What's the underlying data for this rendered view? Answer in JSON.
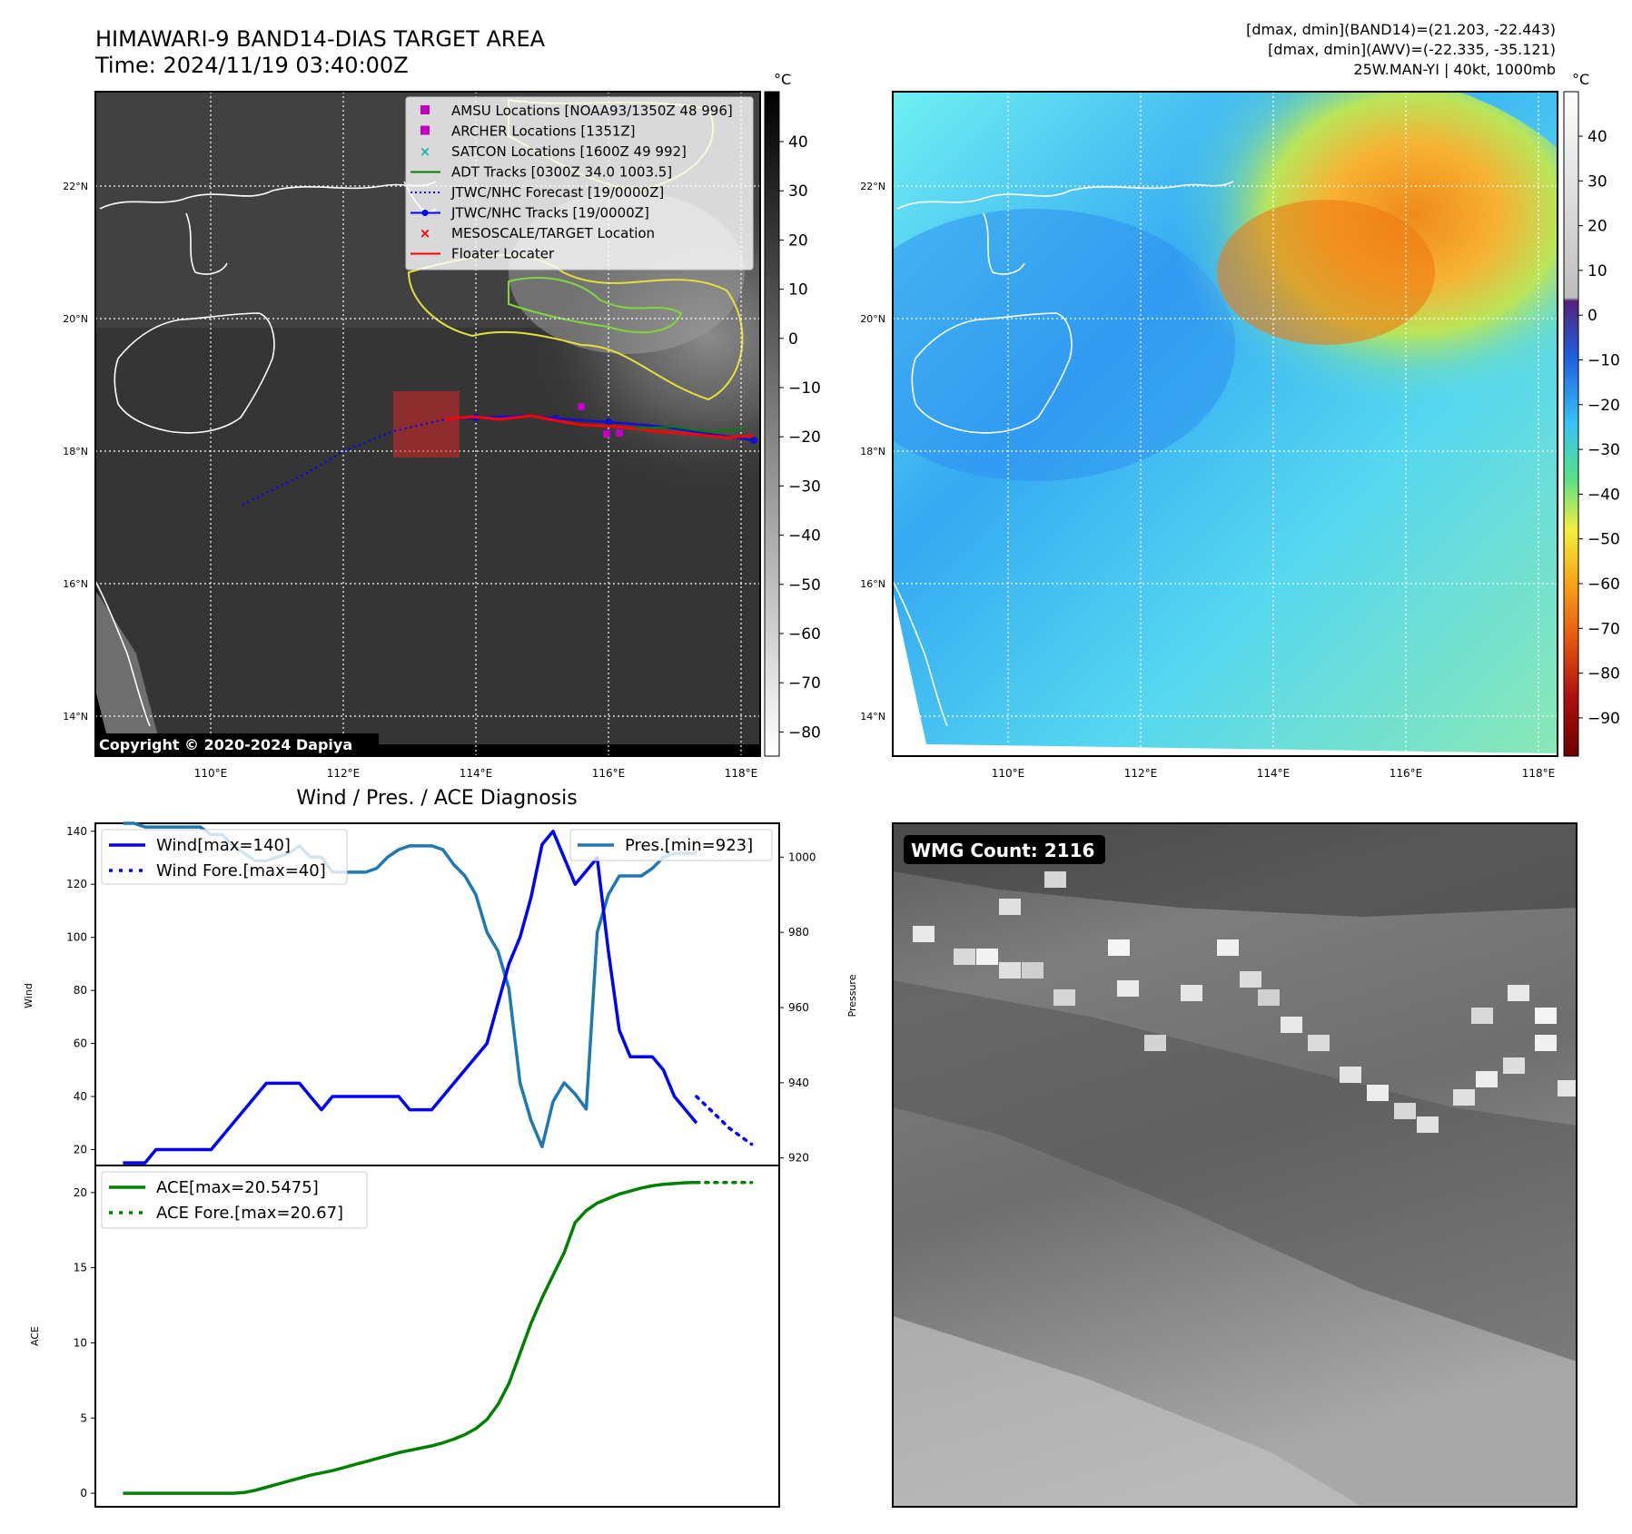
{
  "header": {
    "title_line1": "HIMAWARI-9 BAND14-DIAS TARGET AREA",
    "title_line2": "Time: 2024/11/19 03:40:00Z",
    "info_line1": "[dmax, dmin](BAND14)=(21.203, -22.443)",
    "info_line2": "[dmax, dmin](AWV)=(-22.335, -35.121)",
    "info_line3": "25W.MAN-YI | 40kt, 1000mb"
  },
  "maps": {
    "lat_labels": [
      "22°N",
      "20°N",
      "18°N",
      "16°N",
      "14°N"
    ],
    "lon_labels": [
      "110°E",
      "112°E",
      "114°E",
      "116°E",
      "118°E"
    ],
    "copyright": "Copyright © 2020-2024 Dapiya",
    "colorbar_unit": "°C",
    "gray_colorbar_ticks": [
      "40",
      "30",
      "20",
      "10",
      "0",
      "−10",
      "−20",
      "−30",
      "−40",
      "−50",
      "−60",
      "−70",
      "−80"
    ],
    "color_colorbar_ticks": [
      "40",
      "30",
      "20",
      "10",
      "0",
      "−10",
      "−20",
      "−30",
      "−40",
      "−50",
      "−60",
      "−70",
      "−80",
      "−90"
    ],
    "legend": [
      {
        "label": "AMSU Locations [NOAA93/1350Z 48 996]",
        "symbol": "square",
        "color": "#c000c0"
      },
      {
        "label": "ARCHER Locations [1351Z]",
        "symbol": "square",
        "color": "#c000c0"
      },
      {
        "label": "SATCON Locations [1600Z 49 992]",
        "symbol": "x",
        "color": "#20b2aa"
      },
      {
        "label": "ADT Tracks [0300Z 34.0 1003.5]",
        "symbol": "line",
        "color": "#008000"
      },
      {
        "label": "JTWC/NHC Forecast [19/0000Z]",
        "symbol": "dotted",
        "color": "#0000ff"
      },
      {
        "label": "JTWC/NHC Tracks [19/0000Z]",
        "symbol": "line-dot",
        "color": "#0000ff"
      },
      {
        "label": "MESOSCALE/TARGET Location",
        "symbol": "x",
        "color": "#ff0000"
      },
      {
        "label": "Floater Locater",
        "symbol": "line",
        "color": "#ff0000"
      }
    ]
  },
  "wmg": {
    "label": "WMG Count: 2116"
  },
  "colors": {
    "wind": "#0000ff",
    "pressure": "#1f77b4",
    "ace": "#008000",
    "target_box": "#d62728"
  },
  "chart_data": [
    {
      "type": "line",
      "title": "Wind / Pres. / ACE Diagnosis",
      "ylabel": "Wind",
      "ylim": [
        14,
        143
      ],
      "yticks": [
        20,
        40,
        60,
        80,
        100,
        120,
        140
      ],
      "series": [
        {
          "name": "Wind[max=140]",
          "x": [
            0,
            1,
            2,
            3,
            4,
            5,
            6,
            7,
            8,
            9,
            10,
            11,
            12,
            13,
            14,
            15,
            16,
            17,
            18,
            19,
            20,
            21,
            22,
            23,
            24,
            25,
            26,
            27,
            28,
            29,
            30,
            31,
            32,
            33,
            34,
            35,
            36,
            37,
            38,
            39,
            40,
            41,
            42,
            43,
            44,
            45,
            46,
            47,
            48,
            49,
            50,
            51,
            52
          ],
          "values": [
            15,
            15,
            15,
            20,
            20,
            20,
            20,
            20,
            20,
            25,
            30,
            35,
            40,
            45,
            45,
            45,
            45,
            40,
            35,
            40,
            40,
            40,
            40,
            40,
            40,
            40,
            35,
            35,
            35,
            40,
            45,
            50,
            55,
            60,
            75,
            90,
            100,
            115,
            135,
            140,
            130,
            120,
            125,
            130,
            95,
            65,
            55,
            55,
            55,
            50,
            40,
            35,
            30
          ]
        },
        {
          "name": "Wind Fore.[max=40]",
          "x": [
            52,
            53,
            54,
            55,
            56,
            57
          ],
          "values": [
            40,
            36,
            32,
            28,
            25,
            22
          ],
          "style": "dotted"
        }
      ]
    },
    {
      "type": "line",
      "ylabel": "Pressure",
      "ylim": [
        918,
        1009
      ],
      "yticks": [
        920,
        940,
        960,
        980,
        1000
      ],
      "series": [
        {
          "name": "Pres.[min=923]",
          "x": [
            0,
            1,
            2,
            3,
            4,
            5,
            6,
            7,
            8,
            9,
            10,
            11,
            12,
            13,
            14,
            15,
            16,
            17,
            18,
            19,
            20,
            21,
            22,
            23,
            24,
            25,
            26,
            27,
            28,
            29,
            30,
            31,
            32,
            33,
            34,
            35,
            36,
            37,
            38,
            39,
            40,
            41,
            42,
            43,
            44,
            45,
            46,
            47,
            48,
            49,
            50,
            51,
            52
          ],
          "values": [
            1009,
            1009,
            1008,
            1008,
            1008,
            1008,
            1008,
            1008,
            1006,
            1006,
            1003,
            1001,
            999,
            999,
            1000,
            1001,
            1003,
            1000,
            1000,
            996,
            996,
            996,
            996,
            997,
            1000,
            1002,
            1003,
            1003,
            1003,
            1002,
            998,
            995,
            990,
            980,
            975,
            965,
            940,
            930,
            923,
            935,
            940,
            937,
            933,
            980,
            990,
            995,
            995,
            995,
            997,
            1000,
            1001,
            1001,
            1001
          ]
        }
      ]
    },
    {
      "type": "area",
      "ylabel": "ACE",
      "ylim": [
        -0.9,
        21.8
      ],
      "yticks": [
        0,
        5,
        10,
        15,
        20
      ],
      "series": [
        {
          "name": "ACE[max=20.5475]",
          "x": [
            0,
            1,
            2,
            3,
            4,
            5,
            6,
            7,
            8,
            9,
            10,
            11,
            12,
            13,
            14,
            15,
            16,
            17,
            18,
            19,
            20,
            21,
            22,
            23,
            24,
            25,
            26,
            27,
            28,
            29,
            30,
            31,
            32,
            33,
            34,
            35,
            36,
            37,
            38,
            39,
            40,
            41,
            42,
            43,
            44,
            45,
            46,
            47,
            48,
            49,
            50,
            51,
            52
          ],
          "values": [
            0,
            0,
            0,
            0,
            0,
            0,
            0,
            0,
            0,
            0,
            0,
            0.05,
            0.2,
            0.4,
            0.6,
            0.8,
            1.0,
            1.2,
            1.35,
            1.5,
            1.7,
            1.9,
            2.1,
            2.3,
            2.5,
            2.7,
            2.85,
            3.0,
            3.15,
            3.35,
            3.6,
            3.9,
            4.3,
            4.9,
            5.9,
            7.3,
            9.3,
            11.3,
            13.0,
            14.5,
            16.0,
            18.0,
            18.8,
            19.3,
            19.6,
            19.9,
            20.1,
            20.3,
            20.45,
            20.55,
            20.6,
            20.65,
            20.67
          ]
        },
        {
          "name": "ACE Fore.[max=20.67]",
          "x": [
            52,
            53,
            54,
            55,
            56,
            57
          ],
          "values": [
            20.67,
            20.67,
            20.67,
            20.67,
            20.67,
            20.67
          ],
          "style": "dotted"
        }
      ]
    }
  ]
}
